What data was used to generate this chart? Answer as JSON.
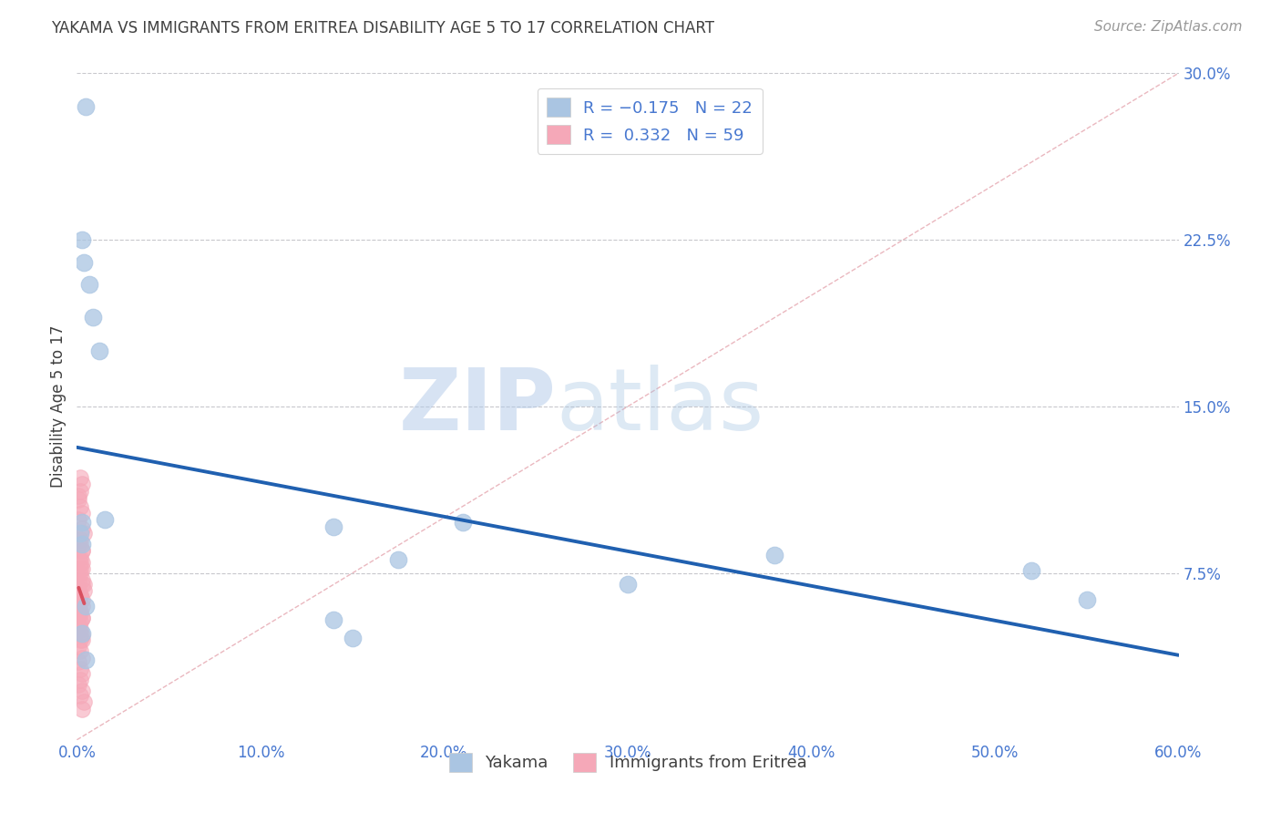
{
  "title": "YAKAMA VS IMMIGRANTS FROM ERITREA DISABILITY AGE 5 TO 17 CORRELATION CHART",
  "source": "Source: ZipAtlas.com",
  "xlabel_ticks": [
    "0.0%",
    "10.0%",
    "20.0%",
    "30.0%",
    "40.0%",
    "50.0%",
    "60.0%"
  ],
  "xlabel_vals": [
    0.0,
    0.1,
    0.2,
    0.3,
    0.4,
    0.5,
    0.6
  ],
  "ylabel_ticks": [
    "30.0%",
    "22.5%",
    "15.0%",
    "7.5%"
  ],
  "ylabel_vals": [
    0.3,
    0.225,
    0.15,
    0.075
  ],
  "xmin": 0.0,
  "xmax": 0.6,
  "ymin": 0.0,
  "ymax": 0.3,
  "yakama_x": [
    0.005,
    0.004,
    0.003,
    0.007,
    0.009,
    0.012,
    0.003,
    0.002,
    0.003,
    0.015,
    0.14,
    0.175,
    0.21,
    0.3,
    0.38,
    0.52,
    0.55,
    0.14,
    0.15,
    0.005,
    0.003,
    0.005
  ],
  "yakama_y": [
    0.285,
    0.215,
    0.225,
    0.205,
    0.19,
    0.175,
    0.098,
    0.093,
    0.088,
    0.099,
    0.096,
    0.081,
    0.098,
    0.07,
    0.083,
    0.076,
    0.063,
    0.054,
    0.046,
    0.06,
    0.048,
    0.036
  ],
  "eritrea_x": [
    0.001,
    0.002,
    0.003,
    0.001,
    0.002,
    0.003,
    0.002,
    0.001,
    0.003,
    0.004,
    0.002,
    0.001,
    0.003,
    0.002,
    0.003,
    0.002,
    0.001,
    0.003,
    0.004,
    0.001,
    0.002,
    0.003,
    0.001,
    0.002,
    0.003,
    0.002,
    0.001,
    0.002,
    0.003,
    0.002,
    0.003,
    0.001,
    0.002,
    0.003,
    0.002,
    0.001,
    0.003,
    0.004,
    0.002,
    0.001,
    0.003,
    0.002,
    0.003,
    0.001,
    0.002,
    0.003,
    0.002,
    0.001,
    0.002,
    0.003,
    0.001,
    0.002,
    0.003,
    0.002,
    0.001,
    0.003,
    0.002,
    0.004,
    0.003
  ],
  "eritrea_y": [
    0.108,
    0.105,
    0.102,
    0.099,
    0.118,
    0.115,
    0.112,
    0.11,
    0.095,
    0.093,
    0.09,
    0.088,
    0.085,
    0.082,
    0.08,
    0.077,
    0.075,
    0.072,
    0.07,
    0.068,
    0.065,
    0.063,
    0.06,
    0.058,
    0.055,
    0.053,
    0.05,
    0.048,
    0.045,
    0.088,
    0.085,
    0.082,
    0.08,
    0.077,
    0.075,
    0.072,
    0.07,
    0.067,
    0.065,
    0.062,
    0.06,
    0.057,
    0.055,
    0.052,
    0.05,
    0.047,
    0.045,
    0.042,
    0.04,
    0.037,
    0.035,
    0.032,
    0.03,
    0.027,
    0.025,
    0.022,
    0.02,
    0.017,
    0.014
  ],
  "r_yakama": -0.175,
  "n_yakama": 22,
  "r_eritrea": 0.332,
  "n_eritrea": 59,
  "yakama_color": "#aac5e2",
  "eritrea_color": "#f5a8b8",
  "yakama_line_color": "#2060b0",
  "eritrea_line_color": "#d85060",
  "diagonal_color": "#e8b0b8",
  "grid_color": "#c8c8cc",
  "title_color": "#404040",
  "right_axis_color": "#4878d0",
  "ylabel": "Disability Age 5 to 17",
  "watermark_zip": "ZIP",
  "watermark_atlas": "atlas"
}
